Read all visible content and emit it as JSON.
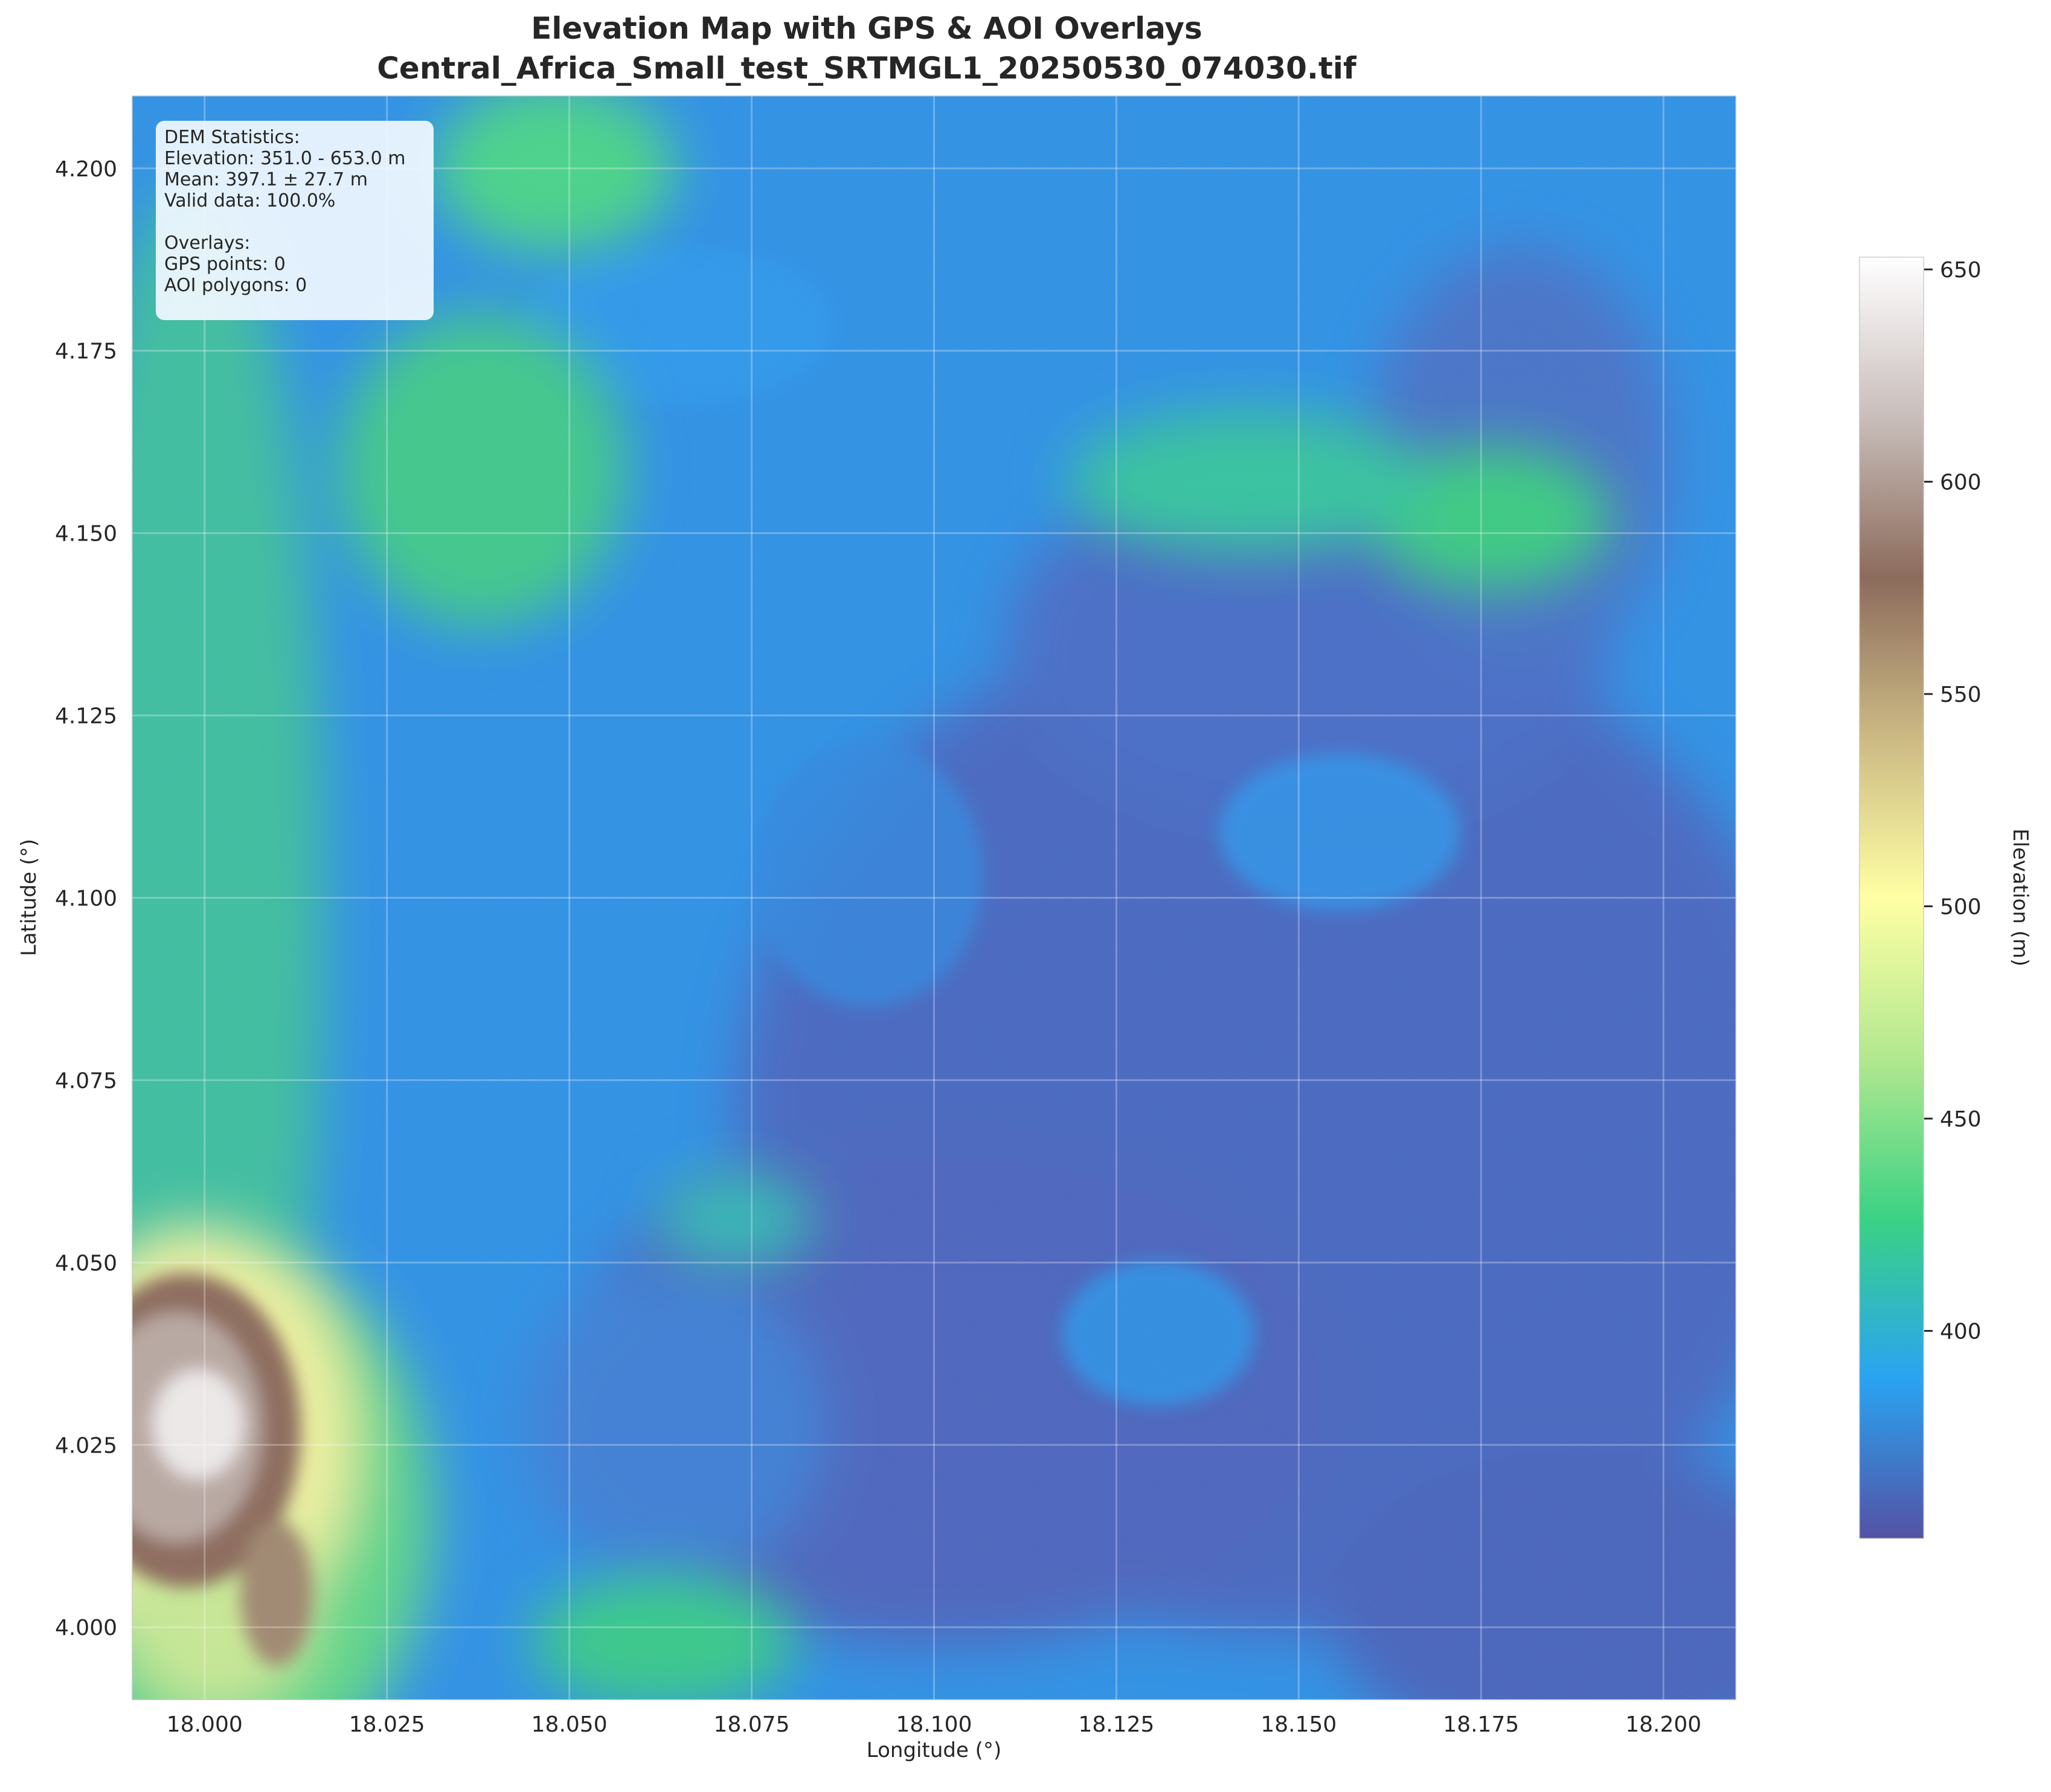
{
  "chart_data": {
    "type": "heatmap",
    "title": "Elevation Map with GPS & AOI Overlays",
    "subtitle": "Central_Africa_Small_test_SRTMGL1_20250530_074030.tif",
    "xlabel": "Longitude (°)",
    "ylabel": "Latitude (°)",
    "xlim": [
      17.99,
      18.21
    ],
    "ylim": [
      3.99,
      4.21
    ],
    "x_ticks": [
      "18.000",
      "18.025",
      "18.050",
      "18.075",
      "18.100",
      "18.125",
      "18.150",
      "18.175",
      "18.200"
    ],
    "y_ticks": [
      "4.000",
      "4.025",
      "4.050",
      "4.075",
      "4.100",
      "4.125",
      "4.150",
      "4.175",
      "4.200"
    ],
    "grid": true,
    "colorbar": {
      "label": "Elevation (m)",
      "range": [
        351.0,
        653.0
      ],
      "ticks": [
        "400",
        "450",
        "500",
        "550",
        "600",
        "650"
      ],
      "colormap": "terrain",
      "colors": [
        "#5452a3",
        "#2aa3f2",
        "#3ad284",
        "#b2e88f",
        "#ffffa4",
        "#ccba84",
        "#8c6b5c",
        "#c9bebb",
        "#ffffff"
      ]
    },
    "elevation_features": [
      {
        "lon": 18.0,
        "lat": 4.02,
        "elevation": 640
      },
      {
        "lon": 18.05,
        "lat": 4.2,
        "elevation": 455
      },
      {
        "lon": 18.175,
        "lat": 4.155,
        "elevation": 440
      },
      {
        "lon": 18.13,
        "lat": 4.1,
        "elevation": 370
      }
    ]
  },
  "stats_box": {
    "heading": "DEM Statistics:",
    "elevation": "Elevation: 351.0 - 653.0 m",
    "mean": "Mean: 397.1 ± 27.7 m",
    "valid": "Valid data: 100.0%",
    "overlays_heading": "Overlays:",
    "gps": "GPS points: 0",
    "aoi": "AOI polygons: 0"
  }
}
